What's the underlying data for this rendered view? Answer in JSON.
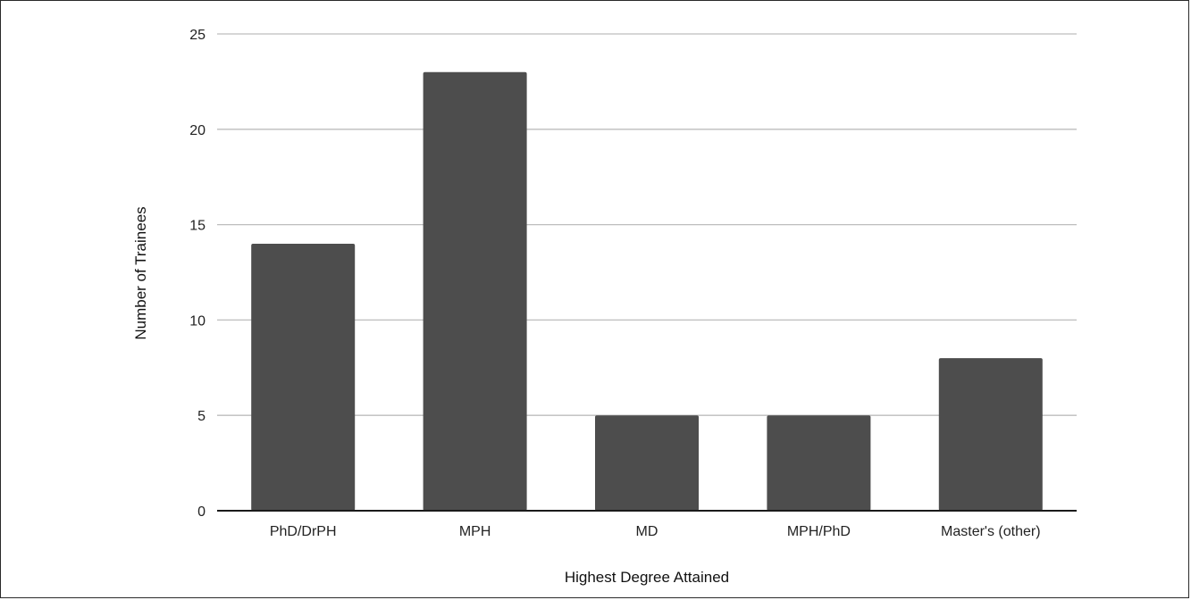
{
  "chart_data": {
    "type": "bar",
    "title": "",
    "xlabel": "Highest Degree Attained",
    "ylabel": "Number of Trainees",
    "categories": [
      "PhD/DrPH",
      "MPH",
      "MD",
      "MPH/PhD",
      "Master's (other)"
    ],
    "values": [
      14,
      23,
      5,
      5,
      8
    ],
    "ylim": [
      0,
      25
    ],
    "yticks": [
      0,
      5,
      10,
      15,
      20,
      25
    ],
    "grid": true,
    "legend": "none",
    "bar_color": "#4d4d4d",
    "grid_color": "#bdbdbd",
    "axis_color": "#1a1a1a"
  }
}
